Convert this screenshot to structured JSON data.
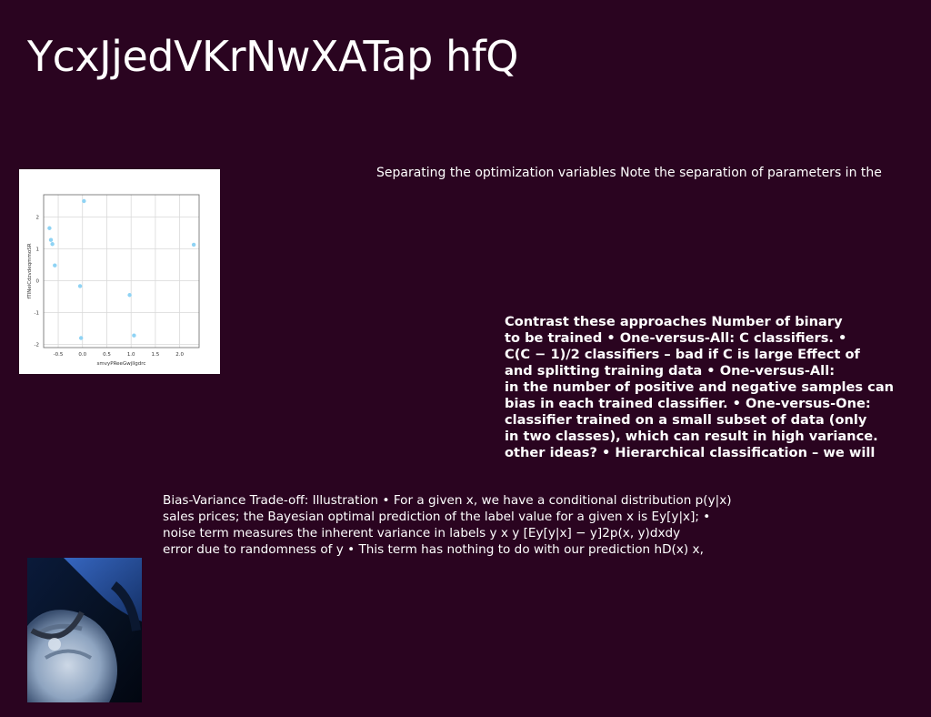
{
  "title": "YcxJjedVKrNwXATap hfQ",
  "separating_text": "Separating the optimization variables Note the separation of parameters in the",
  "contrast_lines": [
    "Contrast these approaches Number of binary",
    "to be trained • One-versus-All: C classifiers. •",
    "C(C − 1)/2 classifiers – bad if C is large Effect of",
    "and splitting training data • One-versus-All:",
    "in the number of positive and negative samples can",
    "bias in each trained classifier. • One-versus-One:",
    "classifier trained on a small subset of data (only",
    "in two classes), which can result in high variance.",
    "other ideas? • Hierarchical classification – we will"
  ],
  "bias_lines": [
    "Bias-Variance Trade-off: Illustration • For a given x, we have a conditional distribution p(y|x)",
    "sales prices; the Bayesian optimal prediction of the label value for a given x is Ey[y|x]; •",
    "noise term measures the inherent variance in labels y  x  y [Ey[y|x] − y]2p(x, y)dxdy   ",
    "error due to randomness of y • This term has nothing to do with our prediction hD(x) x,"
  ],
  "chart_data": {
    "type": "scatter",
    "xlabel": "smvyPReeGwjllgdrc",
    "ylabel": "fTlNeiCdzvdeqmmoSR",
    "xlim": [
      -0.8,
      2.4
    ],
    "ylim": [
      -2.1,
      2.7
    ],
    "xticks": [
      "-0.5",
      "0.0",
      "0.5",
      "1.0",
      "1.5",
      "2.0"
    ],
    "yticks": [
      "2",
      "1",
      "0",
      "-1",
      "-2"
    ],
    "grid": true,
    "color": "#8fd3f4",
    "points": [
      {
        "x": -0.68,
        "y": 1.65
      },
      {
        "x": -0.65,
        "y": 1.28
      },
      {
        "x": -0.62,
        "y": 1.15
      },
      {
        "x": -0.57,
        "y": 0.48
      },
      {
        "x": 0.03,
        "y": 2.5
      },
      {
        "x": -0.05,
        "y": -0.17
      },
      {
        "x": -0.03,
        "y": -1.8
      },
      {
        "x": 0.97,
        "y": -0.45
      },
      {
        "x": 1.06,
        "y": -1.72
      },
      {
        "x": 2.29,
        "y": 1.13
      }
    ]
  }
}
